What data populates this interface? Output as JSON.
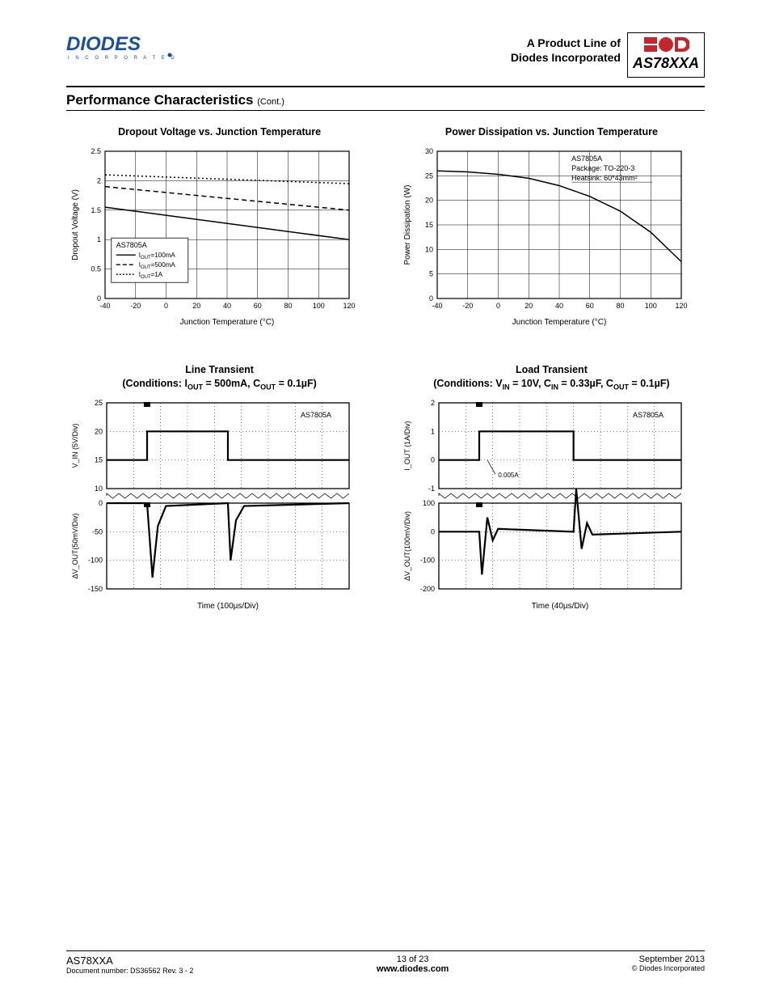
{
  "header": {
    "logo_text": "DIODES",
    "logo_sub": "I N C O R P O R A T E D",
    "product_line_l1": "A Product Line of",
    "product_line_l2": "Diodes Incorporated",
    "part_number": "AS78XXA"
  },
  "section": {
    "title": "Performance Characteristics",
    "cont": "(Cont.)"
  },
  "chart1": {
    "type": "line",
    "title": "Dropout Voltage vs. Junction Temperature",
    "xlabel": "Junction Temperature (°C)",
    "ylabel": "Dropout Voltage (V)",
    "xlim": [
      -40,
      120
    ],
    "ylim": [
      0.0,
      2.5
    ],
    "xticks": [
      -40,
      -20,
      0,
      20,
      40,
      60,
      80,
      100,
      120
    ],
    "yticks": [
      0.0,
      0.5,
      1.0,
      1.5,
      2.0,
      2.5
    ],
    "legend_box": {
      "title": "AS7805A",
      "items": [
        {
          "label": "I_OUT=100mA",
          "dash": "solid"
        },
        {
          "label": "I_OUT=500mA",
          "dash": "dash"
        },
        {
          "label": "I_OUT=1A",
          "dash": "dot"
        }
      ]
    },
    "series": [
      {
        "name": "100mA",
        "dash": "solid",
        "color": "#000",
        "data": [
          [
            -40,
            1.55
          ],
          [
            120,
            1.0
          ]
        ]
      },
      {
        "name": "500mA",
        "dash": "dash",
        "color": "#000",
        "data": [
          [
            -40,
            1.9
          ],
          [
            120,
            1.5
          ]
        ]
      },
      {
        "name": "1A",
        "dash": "dot",
        "color": "#000",
        "data": [
          [
            -40,
            2.1
          ],
          [
            120,
            1.95
          ]
        ]
      }
    ],
    "grid_color": "#000",
    "background_color": "#fff"
  },
  "chart2": {
    "type": "line",
    "title": "Power Dissipation vs. Junction Temperature",
    "xlabel": "Junction Temperature (°C)",
    "ylabel": "Power Dissipation (W)",
    "xlim": [
      -40,
      120
    ],
    "ylim": [
      0,
      30
    ],
    "xticks": [
      -40,
      -20,
      0,
      20,
      40,
      60,
      80,
      100,
      120
    ],
    "yticks": [
      0,
      5,
      10,
      15,
      20,
      25,
      30
    ],
    "annot": {
      "lines": [
        "AS7805A",
        "Package: TO-220-3",
        "Heatsink: 60*43mm²"
      ]
    },
    "series": [
      {
        "name": "pd",
        "dash": "solid",
        "color": "#000",
        "data": [
          [
            -40,
            26
          ],
          [
            -20,
            25.8
          ],
          [
            0,
            25.3
          ],
          [
            20,
            24.5
          ],
          [
            40,
            23
          ],
          [
            60,
            20.8
          ],
          [
            80,
            17.8
          ],
          [
            100,
            13.5
          ],
          [
            120,
            7.5
          ]
        ]
      }
    ],
    "grid_color": "#000",
    "background_color": "#fff"
  },
  "chart3": {
    "type": "scope",
    "title_l1": "Line Transient",
    "title_l2": "(Conditions: I_OUT = 500mA, C_OUT = 0.1µF)",
    "xlabel": "Time (100µs/Div)",
    "panel_a": {
      "ylabel": "V_IN (5V/Div)",
      "yticks": [
        10,
        15,
        20,
        25
      ],
      "annot": "AS7805A",
      "waveform": [
        [
          0,
          15
        ],
        [
          1.5,
          15
        ],
        [
          1.5,
          20
        ],
        [
          4.5,
          20
        ],
        [
          4.5,
          15
        ],
        [
          9,
          15
        ]
      ]
    },
    "panel_b": {
      "ylabel": "ΔV_OUT(50mV/Div)",
      "yticks": [
        -150,
        -100,
        -50,
        0
      ],
      "waveform": [
        [
          0,
          0
        ],
        [
          1.5,
          0
        ],
        [
          1.7,
          -130
        ],
        [
          1.9,
          -40
        ],
        [
          2.2,
          -5
        ],
        [
          4.5,
          0
        ],
        [
          4.6,
          -100
        ],
        [
          4.8,
          -30
        ],
        [
          5.1,
          -5
        ],
        [
          9,
          0
        ]
      ]
    },
    "grid_color": "#000"
  },
  "chart4": {
    "type": "scope",
    "title_l1": "Load Transient",
    "title_l2": "(Conditions: V_IN = 10V, C_IN = 0.33µF, C_OUT = 0.1µF)",
    "xlabel": "Time (40µs/Div)",
    "panel_a": {
      "ylabel": "I_OUT (1A/Div)",
      "yticks": [
        -1,
        0,
        1,
        2
      ],
      "annot": "AS7805A",
      "annot2": "0.005A",
      "waveform": [
        [
          0,
          0
        ],
        [
          1.5,
          0
        ],
        [
          1.5,
          1
        ],
        [
          5,
          1
        ],
        [
          5,
          0
        ],
        [
          9,
          0
        ]
      ]
    },
    "panel_b": {
      "ylabel": "ΔV_OUT(100mV/Div)",
      "yticks": [
        -200,
        -100,
        0,
        100
      ],
      "waveform": [
        [
          0,
          0
        ],
        [
          1.5,
          0
        ],
        [
          1.6,
          -150
        ],
        [
          1.8,
          50
        ],
        [
          2.0,
          -30
        ],
        [
          2.2,
          10
        ],
        [
          5,
          0
        ],
        [
          5.1,
          150
        ],
        [
          5.3,
          -60
        ],
        [
          5.5,
          30
        ],
        [
          5.7,
          -10
        ],
        [
          9,
          0
        ]
      ]
    },
    "grid_color": "#000"
  },
  "footer": {
    "part": "AS78XXA",
    "doc": "Document number: DS36562 Rev. 3 - 2",
    "page": "13 of 23",
    "url": "www.diodes.com",
    "date": "September 2013",
    "copy": "© Diodes Incorporated"
  }
}
